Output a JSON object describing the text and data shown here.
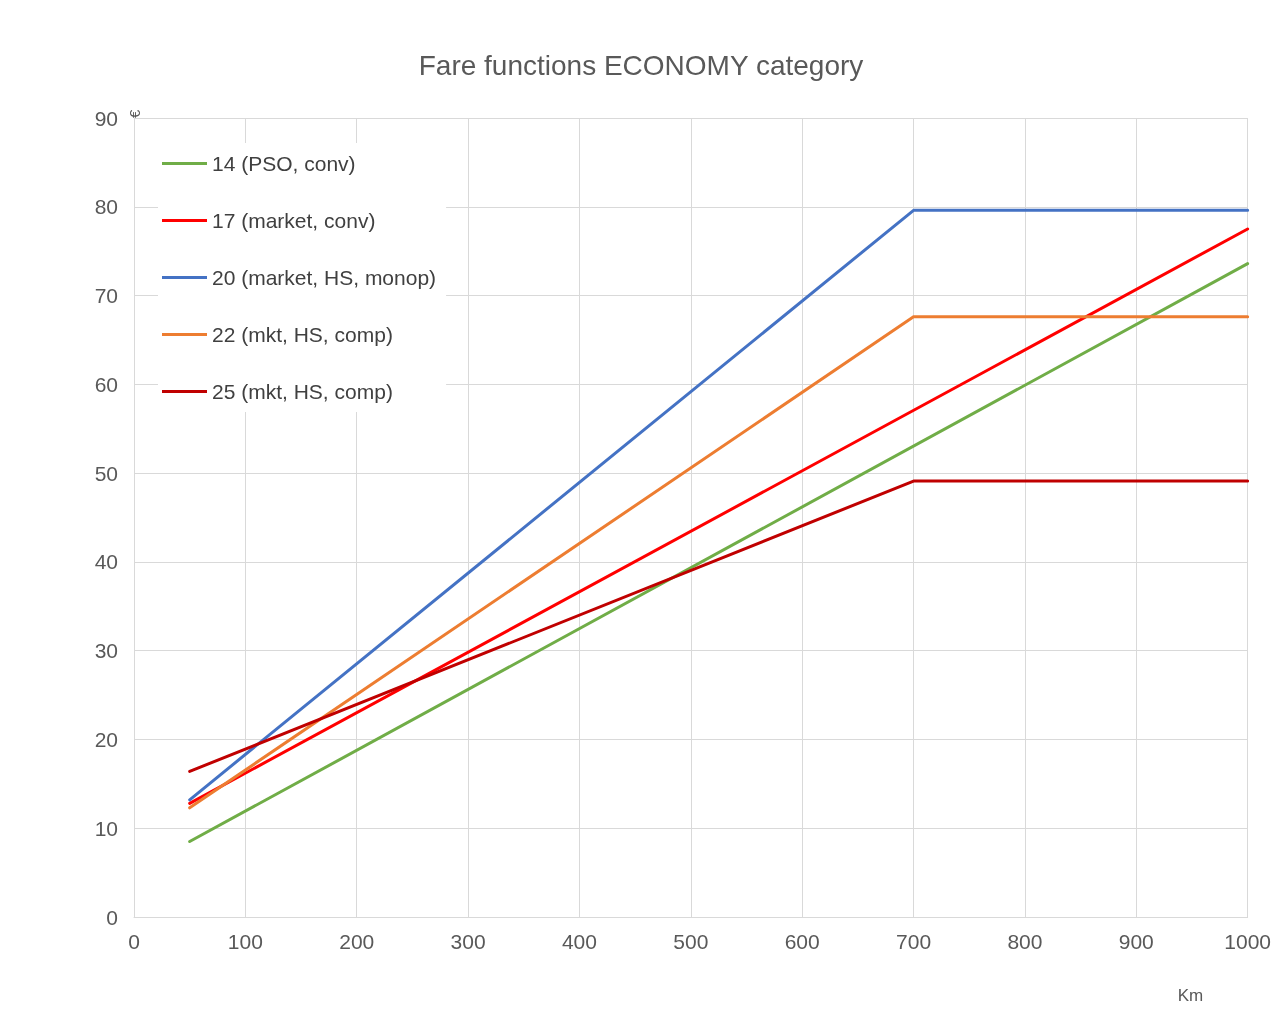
{
  "chart_data": {
    "type": "line",
    "title": "Fare functions ECONOMY category",
    "xlabel": "Km",
    "ylabel": "€",
    "xlim": [
      0,
      1000
    ],
    "xticks": [
      0,
      100,
      200,
      300,
      400,
      500,
      600,
      700,
      800,
      900,
      1000
    ],
    "ylim": [
      0,
      90
    ],
    "yticks": [
      0,
      10,
      20,
      30,
      40,
      50,
      60,
      70,
      80,
      90
    ],
    "grid": true,
    "legend": "top left",
    "marker": "none",
    "line_style": "solid",
    "series": [
      {
        "name": "14 (PSO, conv)",
        "color": "#70ad47",
        "x": [
          50,
          1000
        ],
        "values": [
          8.5,
          73.6
        ]
      },
      {
        "name": "17 (market, conv)",
        "color": "#ff0000",
        "x": [
          50,
          1000
        ],
        "values": [
          12.8,
          77.5
        ]
      },
      {
        "name": "20 (market, HS, monop)",
        "color": "#4472c4",
        "x": [
          50,
          700,
          1000
        ],
        "values": [
          13.2,
          79.6,
          79.6
        ]
      },
      {
        "name": "22 (mkt, HS, comp)",
        "color": "#ed7d31",
        "x": [
          50,
          700,
          1000
        ],
        "values": [
          12.3,
          67.6,
          67.6
        ]
      },
      {
        "name": "25 (mkt, HS, comp)",
        "color": "#c00000",
        "x": [
          50,
          700,
          1000
        ],
        "values": [
          16.4,
          49.1,
          49.1
        ]
      }
    ]
  }
}
